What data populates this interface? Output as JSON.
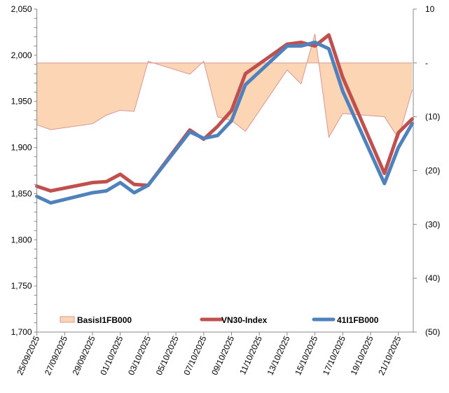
{
  "chart_data": {
    "type": "line",
    "title": "",
    "dates": [
      "25/09/2025",
      "26/09/2025",
      "29/09/2025",
      "30/09/2025",
      "01/10/2025",
      "02/10/2025",
      "03/10/2025",
      "06/10/2025",
      "07/10/2025",
      "08/10/2025",
      "09/10/2025",
      "10/10/2025",
      "13/10/2025",
      "14/10/2025",
      "15/10/2025",
      "16/10/2025",
      "17/10/2025",
      "20/10/2025",
      "21/10/2025",
      "22/10/2025"
    ],
    "x_tick_labels": [
      "25/09/2025",
      "27/09/2025",
      "29/09/2025",
      "01/10/2025",
      "03/10/2025",
      "05/10/2025",
      "07/10/2025",
      "09/10/2025",
      "11/10/2025",
      "13/10/2025",
      "15/10/2025",
      "17/10/2025",
      "19/10/2025",
      "21/10/2025"
    ],
    "left_axis": {
      "range": [
        1700,
        2050
      ],
      "tick_labels": [
        "1,700",
        "1,750",
        "1,800",
        "1,850",
        "1,900",
        "1,950",
        "2,000",
        "2,050"
      ],
      "tick_values": [
        1700,
        1750,
        1800,
        1850,
        1900,
        1950,
        2000,
        2050
      ]
    },
    "right_axis": {
      "range": [
        -50,
        10
      ],
      "tick_labels": [
        "(50)",
        "(40)",
        "(30)",
        "(20)",
        "(10)",
        "-",
        "10"
      ],
      "tick_values": [
        -50,
        -40,
        -30,
        -20,
        -10,
        0,
        10
      ]
    },
    "series": [
      {
        "name": "BasisI1FB000",
        "type": "area",
        "axis": "right",
        "color": "#FCD5B5",
        "line_color": "#D99694",
        "values": [
          -11.5,
          -12.4,
          -11.3,
          -9.7,
          -8.8,
          -9.0,
          0.3,
          -2.1,
          0.3,
          -10.0,
          -10.7,
          -12.7,
          -1.3,
          -3.9,
          5.4,
          -13.8,
          -9.4,
          -10.0,
          -14.0,
          -5.0
        ]
      },
      {
        "name": "VN30-Index",
        "type": "line",
        "axis": "left",
        "color": "#C0504D",
        "values": [
          1858,
          1853,
          1862,
          1863,
          1871,
          1860,
          1859,
          1919,
          1909,
          1923,
          1940,
          1980,
          2012,
          2014,
          2010,
          2022,
          1976,
          1872,
          1916,
          1931
        ]
      },
      {
        "name": "41I1FB000",
        "type": "line",
        "axis": "left",
        "color": "#4F81BD",
        "values": [
          1847,
          1840,
          1851,
          1853,
          1862,
          1851,
          1859,
          1917,
          1910,
          1913,
          1929,
          1968,
          2010,
          2010,
          2014,
          2007,
          1961,
          1861,
          1900,
          1926
        ]
      }
    ],
    "legend": "bottom-inside",
    "grid": false
  }
}
